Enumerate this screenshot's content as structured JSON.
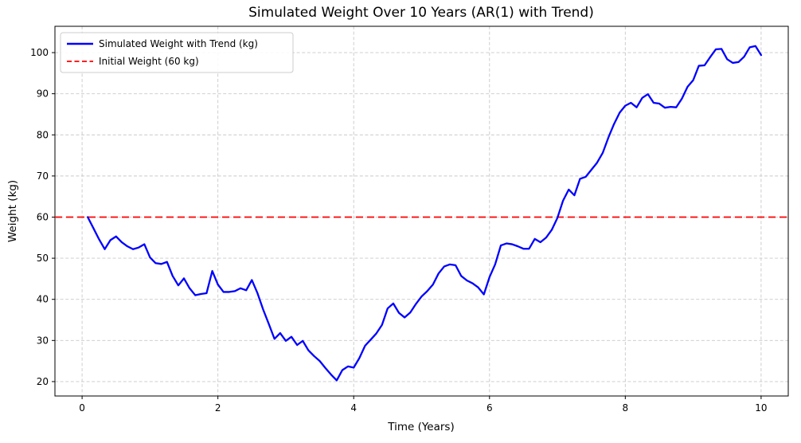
{
  "title": "Simulated Weight Over 10 Years (AR(1) with Trend)",
  "axes": {
    "xlabel": "Time (Years)",
    "ylabel": "Weight (kg)",
    "xticks": [
      0,
      2,
      4,
      6,
      8,
      10
    ],
    "yticks": [
      20,
      30,
      40,
      50,
      60,
      70,
      80,
      90,
      100
    ]
  },
  "legend": {
    "position": "upper left",
    "items": [
      {
        "label": "Simulated Weight with Trend (kg)",
        "color": "#0000ff",
        "style": "solid"
      },
      {
        "label": "Initial Weight (60 kg)",
        "color": "#ff0000",
        "style": "dashed"
      }
    ]
  },
  "colors": {
    "series_line": "#0000ff",
    "reference_line": "#ff0000",
    "grid": "#c9c9c9",
    "background": "#ffffff",
    "spine": "#000000"
  },
  "chart_data": {
    "type": "line",
    "title": "Simulated Weight Over 10 Years (AR(1) with Trend)",
    "xlabel": "Time (Years)",
    "ylabel": "Weight (kg)",
    "xlim": [
      -0.4,
      10.4
    ],
    "ylim": [
      16.5,
      106.4
    ],
    "grid": true,
    "legend_position": "upper left",
    "x": [
      0.083,
      0.167,
      0.25,
      0.333,
      0.417,
      0.5,
      0.583,
      0.667,
      0.75,
      0.833,
      0.917,
      1.0,
      1.083,
      1.167,
      1.25,
      1.333,
      1.417,
      1.5,
      1.583,
      1.667,
      1.75,
      1.833,
      1.917,
      2.0,
      2.083,
      2.167,
      2.25,
      2.333,
      2.417,
      2.5,
      2.583,
      2.667,
      2.75,
      2.833,
      2.917,
      3.0,
      3.083,
      3.167,
      3.25,
      3.333,
      3.417,
      3.5,
      3.583,
      3.667,
      3.75,
      3.833,
      3.917,
      4.0,
      4.083,
      4.167,
      4.25,
      4.333,
      4.417,
      4.5,
      4.583,
      4.667,
      4.75,
      4.833,
      4.917,
      5.0,
      5.083,
      5.167,
      5.25,
      5.333,
      5.417,
      5.5,
      5.583,
      5.667,
      5.75,
      5.833,
      5.917,
      6.0,
      6.083,
      6.167,
      6.25,
      6.333,
      6.417,
      6.5,
      6.583,
      6.667,
      6.75,
      6.833,
      6.917,
      7.0,
      7.083,
      7.167,
      7.25,
      7.333,
      7.417,
      7.5,
      7.583,
      7.667,
      7.75,
      7.833,
      7.917,
      8.0,
      8.083,
      8.167,
      8.25,
      8.333,
      8.417,
      8.5,
      8.583,
      8.667,
      8.75,
      8.833,
      8.917,
      9.0,
      9.083,
      9.167,
      9.25,
      9.333,
      9.417,
      9.5,
      9.583,
      9.667,
      9.75,
      9.833,
      9.917,
      10.0
    ],
    "series": [
      {
        "name": "Simulated Weight with Trend (kg)",
        "values": [
          60.0,
          57.3,
          54.6,
          52.2,
          54.4,
          55.3,
          53.9,
          52.9,
          52.2,
          52.6,
          53.4,
          50.2,
          48.8,
          48.6,
          49.1,
          45.7,
          43.4,
          45.1,
          42.7,
          41.0,
          41.3,
          41.5,
          46.9,
          43.6,
          41.8,
          41.8,
          42.0,
          42.7,
          42.2,
          44.7,
          41.5,
          37.5,
          34.0,
          30.4,
          31.8,
          29.9,
          30.9,
          28.9,
          29.9,
          27.6,
          26.2,
          25.0,
          23.3,
          21.7,
          20.3,
          22.8,
          23.7,
          23.4,
          25.7,
          28.7,
          30.2,
          31.7,
          33.8,
          37.8,
          39.0,
          36.7,
          35.6,
          36.8,
          38.9,
          40.7,
          42.0,
          43.6,
          46.3,
          48.0,
          48.5,
          48.3,
          45.7,
          44.6,
          43.9,
          42.9,
          41.2,
          45.4,
          48.5,
          53.1,
          53.6,
          53.4,
          52.9,
          52.3,
          52.3,
          54.7,
          53.9,
          55.0,
          56.9,
          59.8,
          64.0,
          66.7,
          65.3,
          69.3,
          69.8,
          71.5,
          73.2,
          75.6,
          79.3,
          82.6,
          85.4,
          87.1,
          87.8,
          86.7,
          89.0,
          89.9,
          87.8,
          87.6,
          86.6,
          86.8,
          86.7,
          88.8,
          91.7,
          93.3,
          96.8,
          96.9,
          98.9,
          100.8,
          100.9,
          98.4,
          97.5,
          97.7,
          99.0,
          101.3,
          101.6,
          99.4
        ]
      }
    ],
    "reference_line": {
      "name": "Initial Weight (60 kg)",
      "value": 60
    }
  }
}
